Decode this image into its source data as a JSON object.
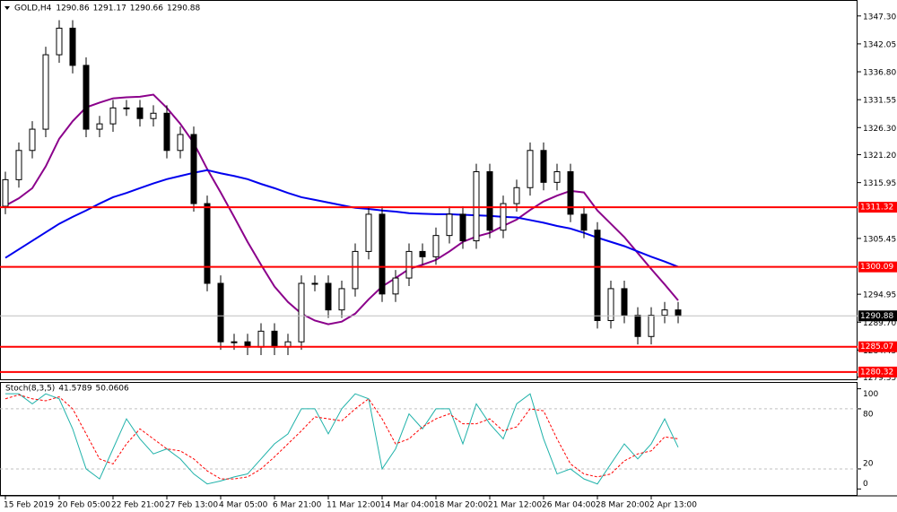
{
  "chart_data": [
    {
      "type": "candlestick",
      "title": "GOLD,H4",
      "header_values": [
        1290.86,
        1291.17,
        1290.66,
        1290.88
      ],
      "categories": [
        "15 Feb 2019",
        null,
        null,
        null,
        "20 Feb 05:00",
        null,
        null,
        null,
        "22 Feb 21:00",
        null,
        null,
        null,
        "27 Feb 13:00",
        null,
        null,
        null,
        "4 Mar 05:00",
        null,
        null,
        null,
        "6 Mar 21:00",
        null,
        null,
        null,
        "11 Mar 12:00",
        null,
        null,
        null,
        "14 Mar 04:00",
        null,
        null,
        null,
        "18 Mar 20:00",
        null,
        null,
        null,
        "21 Mar 12:00",
        null,
        null,
        null,
        "26 Mar 04:00",
        null,
        null,
        null,
        "28 Mar 20:00",
        null,
        null,
        null,
        "2 Apr 13:00",
        null,
        null
      ],
      "open": [
        1311.5,
        1316.5,
        1322,
        1326,
        1340,
        1345,
        1338,
        1326,
        1327,
        1330,
        1330,
        1328,
        1329,
        1322,
        1325,
        1312,
        1297,
        1286,
        1286,
        1285,
        1288,
        1285,
        1286,
        1297,
        1297,
        1292,
        1296,
        1303,
        1310,
        1295,
        1298,
        1303,
        1302,
        1306,
        1310,
        1305,
        1318,
        1307,
        1312,
        1315,
        1322,
        1316,
        1318,
        1310,
        1307,
        1290,
        1296,
        1291,
        1287,
        1291,
        1292
      ],
      "high": [
        1318,
        1323.5,
        1327.5,
        1341.5,
        1346.5,
        1346.5,
        1339.5,
        1328.5,
        1331.5,
        1331.5,
        1331.5,
        1330.5,
        1330.5,
        1326.5,
        1326.5,
        1313.5,
        1298.5,
        1287.5,
        1287.5,
        1289.5,
        1289.5,
        1287.5,
        1298.5,
        1298.5,
        1298.5,
        1297.5,
        1304.5,
        1311.5,
        1311.5,
        1299.5,
        1304.5,
        1304.5,
        1307.5,
        1311.5,
        1311.5,
        1319.5,
        1319.5,
        1313.5,
        1316.5,
        1323.5,
        1323.5,
        1319.5,
        1319.5,
        1311.5,
        1308.5,
        1297.5,
        1297.5,
        1292.5,
        1292.5,
        1293.5,
        1293.5
      ],
      "low": [
        1310,
        1315,
        1320.5,
        1324.5,
        1338.5,
        1336.5,
        1324.5,
        1324.5,
        1325.5,
        1328.5,
        1326.5,
        1326.5,
        1320.5,
        1320.5,
        1310.5,
        1295.5,
        1284.5,
        1284.5,
        1283.5,
        1283.5,
        1283.5,
        1283.5,
        1284.5,
        1295.5,
        1290.5,
        1290.5,
        1294.5,
        1301.5,
        1293.5,
        1293.5,
        1296.5,
        1300.5,
        1300.5,
        1304.5,
        1303.5,
        1303.5,
        1305.5,
        1305.5,
        1310.5,
        1313.5,
        1314.5,
        1314.5,
        1308.5,
        1305.5,
        1288.5,
        1288.5,
        1289.5,
        1285.5,
        1285.5,
        1289.5,
        1289.5
      ],
      "close": [
        1316.5,
        1322,
        1326,
        1340,
        1345,
        1338,
        1326,
        1327,
        1330,
        1330,
        1328,
        1329,
        1322,
        1325,
        1312,
        1297,
        1286,
        1286,
        1285,
        1288,
        1285,
        1286,
        1297,
        1297,
        1292,
        1296,
        1303,
        1310,
        1295,
        1298,
        1303,
        1302,
        1306,
        1310,
        1305,
        1318,
        1307,
        1312,
        1315,
        1322,
        1316,
        1318,
        1310,
        1307,
        1290,
        1296,
        1291,
        1287,
        1291,
        1292,
        1290.88
      ],
      "lines": [
        {
          "color": "#8b008b",
          "values": [
            1311.6,
            1313,
            1314.9,
            1319,
            1324.2,
            1327.5,
            1330.1,
            1331,
            1331.8,
            1332,
            1332.1,
            1332.5,
            1330,
            1327,
            1323.4,
            1318.5,
            1314.1,
            1309.5,
            1304.8,
            1300.5,
            1296.4,
            1293.5,
            1291.3,
            1290,
            1289.3,
            1289.8,
            1291.3,
            1294,
            1296.4,
            1298,
            1299.7,
            1300.5,
            1301.4,
            1303,
            1304.8,
            1305.8,
            1306.5,
            1307.8,
            1309,
            1310.8,
            1312.4,
            1313.5,
            1314.4,
            1314.1,
            1310.7,
            1308.2,
            1305.7,
            1302.7,
            1299.7,
            1296.8,
            1293.8
          ]
        },
        {
          "color": "#0000ee",
          "values": [
            1301.8,
            1303.4,
            1305,
            1306.6,
            1308.2,
            1309.5,
            1310.7,
            1312,
            1313.2,
            1314,
            1314.9,
            1315.8,
            1316.6,
            1317.2,
            1317.8,
            1318.3,
            1317.7,
            1317.2,
            1316.6,
            1315.7,
            1314.9,
            1314,
            1313.2,
            1312.7,
            1312.2,
            1311.7,
            1311.2,
            1311,
            1310.7,
            1310.5,
            1310.2,
            1310.1,
            1310,
            1310,
            1309.9,
            1309.8,
            1309.7,
            1309.5,
            1309.4,
            1308.9,
            1308.4,
            1307.8,
            1307.3,
            1306.5,
            1305.6,
            1304.8,
            1304,
            1303,
            1302,
            1301.1,
            1300.1
          ]
        }
      ],
      "levels": [
        1311.32,
        1300.09,
        1285.07,
        1280.32
      ],
      "level_color": "#ff0000",
      "ylim": [
        1278.95,
        1350.3
      ],
      "yticks": [
        {
          "value": 1347.3,
          "label": "1347.30"
        },
        1342.05,
        {
          "value": 1336.8,
          "label": "1336.80"
        },
        1331.55,
        {
          "value": 1326.3,
          "label": "1326.30"
        },
        {
          "value": 1321.2,
          "label": "1321.20"
        },
        1315.95,
        1305.45,
        1294.95,
        {
          "value": 1289.7,
          "label": "1289.70"
        },
        1284.45,
        1279.35
      ]
    },
    {
      "type": "line",
      "title": "Stoch(8,3,5)",
      "series": [
        {
          "color": "#20b2aa",
          "values": [
            95,
            95,
            85,
            95,
            90,
            60,
            20,
            10,
            40,
            70,
            50,
            35,
            40,
            30,
            15,
            5,
            8,
            12,
            15,
            30,
            45,
            55,
            80,
            80,
            55,
            80,
            95,
            90,
            20,
            40,
            75,
            60,
            80,
            80,
            45,
            85,
            65,
            50,
            85,
            95,
            50,
            15,
            20,
            10,
            5,
            25,
            45,
            30,
            45,
            70,
            41.5789
          ]
        },
        {
          "color": "#ff0000",
          "dashed": true,
          "values": [
            90,
            94,
            90,
            88,
            92,
            80,
            55,
            30,
            25,
            45,
            60,
            50,
            40,
            38,
            30,
            18,
            10,
            10,
            12,
            20,
            32,
            45,
            58,
            72,
            70,
            68,
            80,
            90,
            70,
            45,
            50,
            62,
            70,
            75,
            65,
            65,
            70,
            58,
            62,
            80,
            78,
            50,
            25,
            15,
            12,
            15,
            28,
            35,
            38,
            52,
            50.0606
          ]
        }
      ],
      "levels": [
        80,
        20
      ],
      "ylim": [
        -6,
        105
      ],
      "yticks": [
        100,
        80,
        20,
        0
      ]
    }
  ]
}
